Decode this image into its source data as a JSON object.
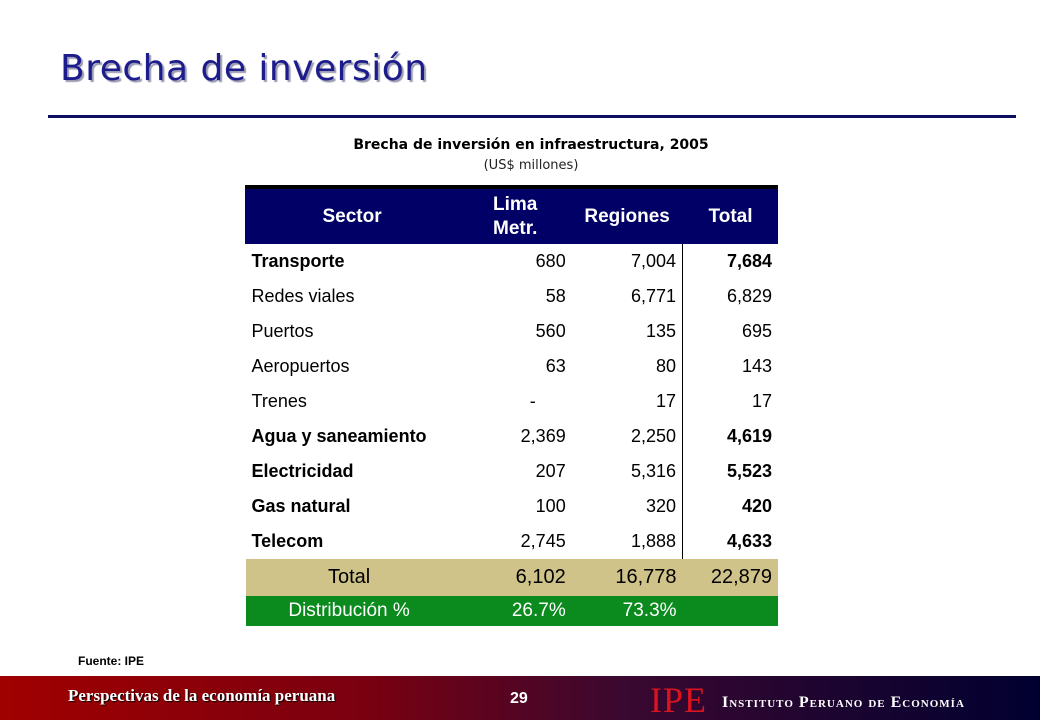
{
  "slide": {
    "title": "Brecha de inversión",
    "source": "Fuente: IPE",
    "page_number": "29"
  },
  "table": {
    "title": "Brecha de inversión en infraestructura, 2005",
    "subtitle": "(US$ millones)",
    "headers": {
      "sector": "Sector",
      "lima": "Lima Metr.",
      "regiones": "Regiones",
      "total": "Total"
    },
    "rows": [
      {
        "sector": "Transporte",
        "lima": "680",
        "regiones": "7,004",
        "total": "7,684"
      },
      {
        "sector": "Redes viales",
        "lima": "58",
        "regiones": "6,771",
        "total": "6,829"
      },
      {
        "sector": "Puertos",
        "lima": "560",
        "regiones": "135",
        "total": "695"
      },
      {
        "sector": "Aeropuertos",
        "lima": "63",
        "regiones": "80",
        "total": "143"
      },
      {
        "sector": "Trenes",
        "lima": "-",
        "regiones": "17",
        "total": "17"
      },
      {
        "sector": "Agua y saneamiento",
        "lima": "2,369",
        "regiones": "2,250",
        "total": "4,619"
      },
      {
        "sector": "Electricidad",
        "lima": "207",
        "regiones": "5,316",
        "total": "5,523"
      },
      {
        "sector": "Gas natural",
        "lima": "100",
        "regiones": "320",
        "total": "420"
      },
      {
        "sector": "Telecom",
        "lima": "2,745",
        "regiones": "1,888",
        "total": "4,633"
      }
    ],
    "total_row": {
      "sector": "Total",
      "lima": "6,102",
      "regiones": "16,778",
      "total": "22,879"
    },
    "distribution_row": {
      "sector": "Distribución %",
      "lima": "26.7%",
      "regiones": "73.3%",
      "total": ""
    }
  },
  "footer": {
    "publication": "Perspectivas de la economía peruana",
    "logo_text": "IPE",
    "institute": "Instituto Peruano de Economía"
  },
  "colors": {
    "title": "#1c1c8c",
    "header_bg": "#000066",
    "total_bg": "#cfc38a",
    "distribution_bg": "#0b8a1e",
    "logo_red": "#d8141e"
  }
}
